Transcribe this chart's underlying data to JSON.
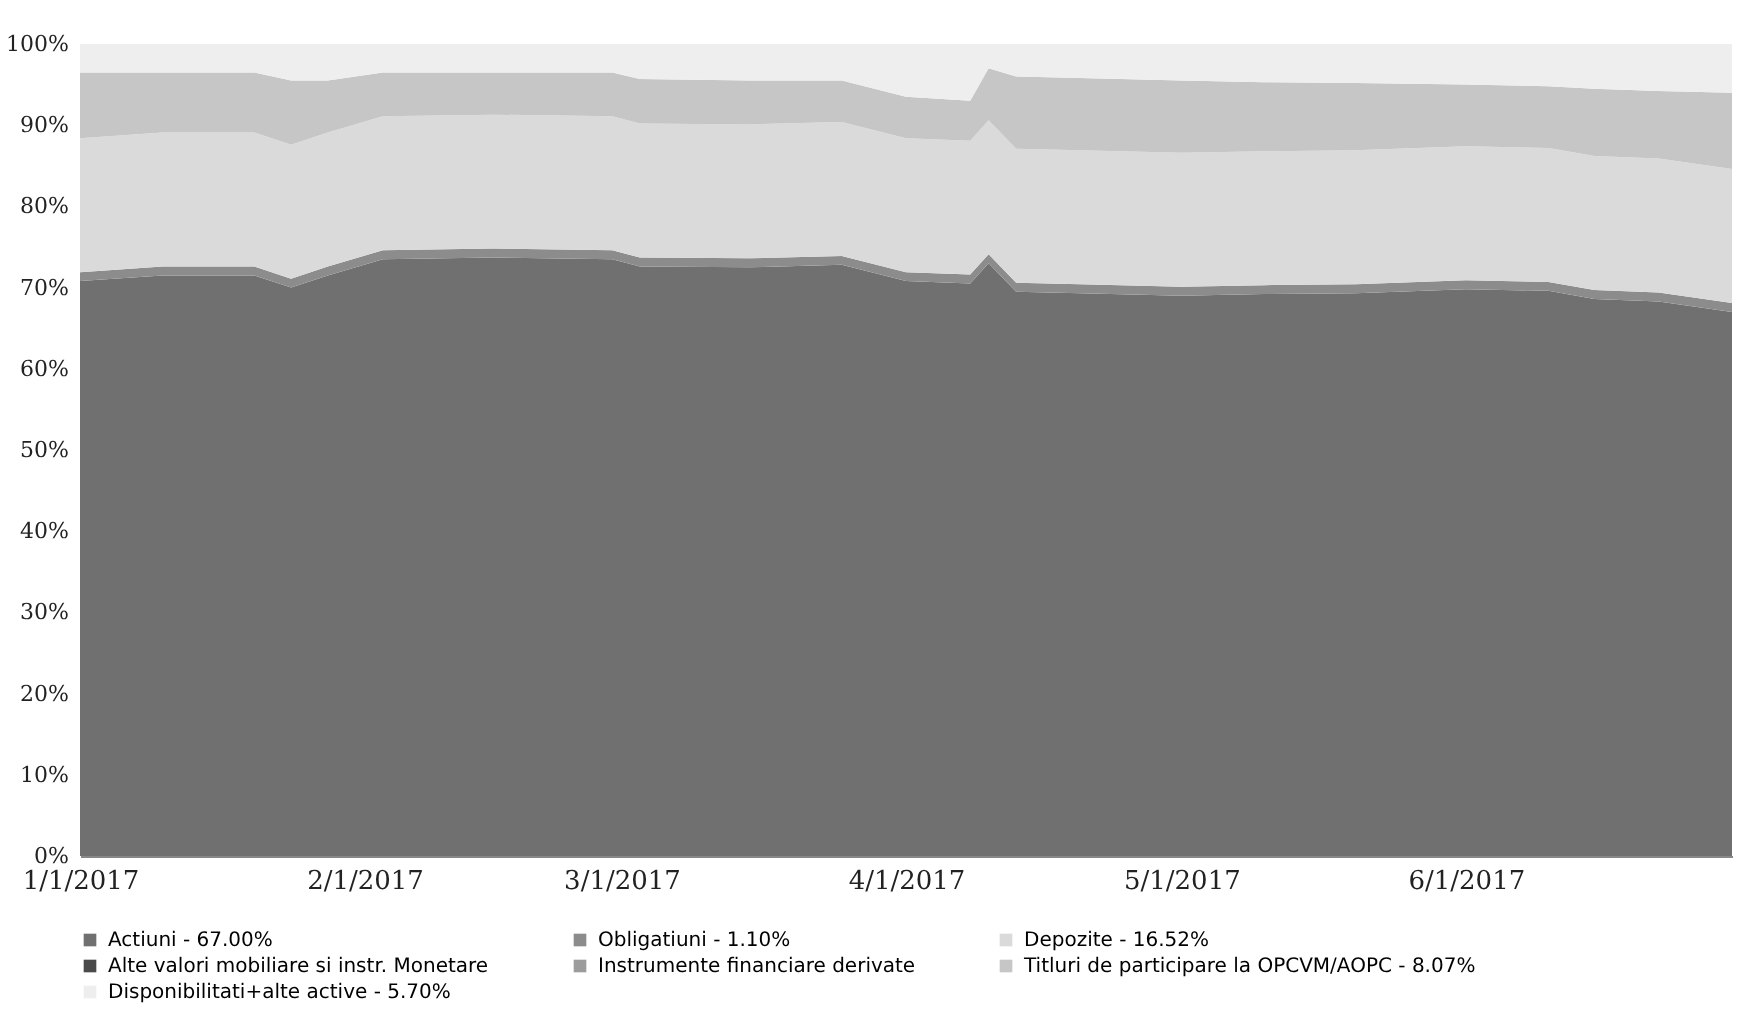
{
  "chart_data": {
    "type": "area",
    "stacked": true,
    "x": [
      "2017-01-01",
      "2017-01-10",
      "2017-01-20",
      "2017-01-24",
      "2017-01-28",
      "2017-02-03",
      "2017-02-15",
      "2017-02-28",
      "2017-03-03",
      "2017-03-15",
      "2017-03-25",
      "2017-04-01",
      "2017-04-08",
      "2017-04-10",
      "2017-04-13",
      "2017-04-20",
      "2017-05-01",
      "2017-05-10",
      "2017-05-20",
      "2017-06-01",
      "2017-06-10",
      "2017-06-15",
      "2017-06-22",
      "2017-06-30"
    ],
    "series": [
      {
        "name": "Actiuni - 67.00%",
        "color": "#707070",
        "values": [
          70.8,
          71.5,
          71.5,
          70.0,
          71.5,
          73.5,
          73.7,
          73.5,
          72.6,
          72.5,
          72.8,
          70.8,
          70.5,
          73.0,
          69.5,
          69.3,
          69.0,
          69.2,
          69.3,
          69.8,
          69.6,
          68.6,
          68.3,
          67.0
        ]
      },
      {
        "name": "Obligatiuni - 1.10%",
        "color": "#8c8c8c",
        "values": [
          1.1,
          1.1,
          1.1,
          1.1,
          1.1,
          1.1,
          1.1,
          1.1,
          1.1,
          1.1,
          1.1,
          1.1,
          1.1,
          1.1,
          1.1,
          1.1,
          1.1,
          1.1,
          1.1,
          1.1,
          1.1,
          1.1,
          1.1,
          1.1
        ]
      },
      {
        "name": "Depozite - 16.52%",
        "color": "#dadada",
        "values": [
          16.5,
          16.5,
          16.5,
          16.5,
          16.5,
          16.5,
          16.5,
          16.5,
          16.5,
          16.5,
          16.5,
          16.5,
          16.5,
          16.5,
          16.5,
          16.5,
          16.5,
          16.5,
          16.5,
          16.5,
          16.5,
          16.5,
          16.5,
          16.5
        ]
      },
      {
        "name": "Alte valori mobiliare si instr. Monetare",
        "color": "#4a4a4a",
        "values": [
          null,
          null,
          null,
          null,
          null,
          null,
          null,
          null,
          null,
          null,
          null,
          null,
          null,
          null,
          null,
          null,
          null,
          null,
          null,
          null,
          null,
          null,
          null,
          null
        ]
      },
      {
        "name": "Instrumente financiare derivate",
        "color": "#9c9c9c",
        "values": [
          null,
          null,
          null,
          null,
          null,
          null,
          null,
          null,
          null,
          null,
          null,
          null,
          null,
          null,
          null,
          null,
          null,
          null,
          null,
          null,
          null,
          null,
          null,
          null
        ]
      },
      {
        "name": "Titluri de participare la OPCVM/AOPC - 8.07%",
        "color": "#c6c6c6",
        "values": [
          8.1,
          7.4,
          7.4,
          7.9,
          6.4,
          5.4,
          5.2,
          5.4,
          5.5,
          5.4,
          5.1,
          5.1,
          4.9,
          6.4,
          8.9,
          8.9,
          8.9,
          8.5,
          8.3,
          7.6,
          7.6,
          8.3,
          8.3,
          9.4
        ]
      },
      {
        "name": "Disponibilitati+alte active - 5.70%",
        "color": "#eeeeee",
        "values": [
          3.5,
          3.5,
          3.5,
          4.5,
          4.5,
          3.5,
          3.5,
          3.5,
          4.3,
          4.5,
          4.5,
          6.5,
          7.0,
          3.0,
          4.0,
          4.2,
          4.5,
          4.7,
          4.8,
          5.0,
          5.2,
          5.5,
          5.8,
          6.0
        ]
      }
    ],
    "xlim": [
      "2017-01-01",
      "2017-06-30"
    ],
    "xticks": [
      {
        "value": "2017-01-01",
        "label": "1/1/2017"
      },
      {
        "value": "2017-02-01",
        "label": "2/1/2017"
      },
      {
        "value": "2017-03-01",
        "label": "3/1/2017"
      },
      {
        "value": "2017-04-01",
        "label": "4/1/2017"
      },
      {
        "value": "2017-05-01",
        "label": "5/1/2017"
      },
      {
        "value": "2017-06-01",
        "label": "6/1/2017"
      }
    ],
    "ylim": [
      0,
      100
    ],
    "yticks": [
      {
        "value": 0,
        "label": "0%"
      },
      {
        "value": 10,
        "label": "10%"
      },
      {
        "value": 20,
        "label": "20%"
      },
      {
        "value": 30,
        "label": "30%"
      },
      {
        "value": 40,
        "label": "40%"
      },
      {
        "value": 50,
        "label": "50%"
      },
      {
        "value": 60,
        "label": "60%"
      },
      {
        "value": 70,
        "label": "70%"
      },
      {
        "value": 80,
        "label": "80%"
      },
      {
        "value": 90,
        "label": "90%"
      },
      {
        "value": 100,
        "label": "100%"
      }
    ],
    "grid": false,
    "legend": "bottom"
  }
}
